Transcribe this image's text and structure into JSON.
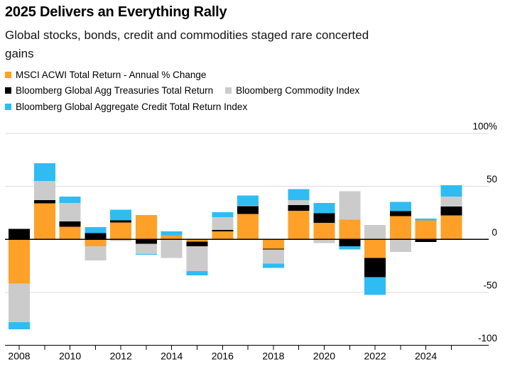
{
  "header": {
    "title": "2025 Delivers an Everything Rally",
    "subtitle": "Global stocks, bonds, credit and commodities staged rare concerted\ngains"
  },
  "legend": {
    "rows": [
      [
        0
      ],
      [
        1,
        2
      ],
      [
        3
      ]
    ]
  },
  "chart_data": {
    "type": "bar",
    "stacked": true,
    "title": "2025 Delivers an Everything Rally",
    "subtitle": "Global stocks, bonds, credit and commodities staged rare concerted gains",
    "categories": [
      2008,
      2009,
      2010,
      2011,
      2012,
      2013,
      2014,
      2015,
      2016,
      2017,
      2018,
      2019,
      2020,
      2021,
      2022,
      2023,
      2024,
      2025
    ],
    "series": [
      {
        "name": "MSCI ACWI Total Return - Annual % Change",
        "color": "#FFA028",
        "values": [
          -41.5,
          34,
          12,
          -6.5,
          16,
          23,
          4,
          -2,
          7.5,
          24,
          -9,
          27,
          15.5,
          18.5,
          -17.5,
          22,
          18,
          22.5
        ]
      },
      {
        "name": "Bloomberg Global Agg Treasuries Total Return",
        "color": "#000000",
        "values": [
          10,
          3,
          5,
          6,
          2,
          -4,
          0,
          -4.5,
          1.5,
          7.5,
          -0.5,
          5.5,
          9,
          -6.5,
          -18,
          4.5,
          -2.5,
          8.5
        ]
      },
      {
        "name": "Bloomberg Commodity Index",
        "color": "#CBCBCB",
        "values": [
          -36.5,
          18,
          17.5,
          -13.5,
          -1.5,
          -10,
          -17.5,
          -23.5,
          12,
          0.5,
          -13.5,
          4.5,
          -3.5,
          27,
          13.5,
          -12,
          0,
          9.5
        ]
      },
      {
        "name": "Bloomberg Global Aggregate Credit Total Return Index",
        "color": "#2FBCF2",
        "values": [
          -7,
          17,
          6,
          5.5,
          10,
          -0.5,
          3.5,
          -4,
          4.5,
          9.5,
          -4,
          10.5,
          10,
          -3,
          -17,
          9,
          1.5,
          10.5
        ]
      }
    ],
    "xlabel": "",
    "ylabel": "%",
    "ylim": [
      -100,
      100
    ],
    "y_ticks": [
      100,
      50,
      0,
      -50,
      -100
    ],
    "y_tick_labels": [
      "100%",
      "50",
      "0",
      "-50",
      "-100"
    ],
    "x_tick_labels": [
      "2008",
      "2010",
      "2012",
      "2014",
      "2016",
      "2018",
      "2020",
      "2022",
      "2024"
    ],
    "grid": true,
    "legend_position": "top-left"
  },
  "colors": {
    "grid_line": "#DBDBDB",
    "zero_line": "#000000",
    "axis_line": "#000000"
  }
}
